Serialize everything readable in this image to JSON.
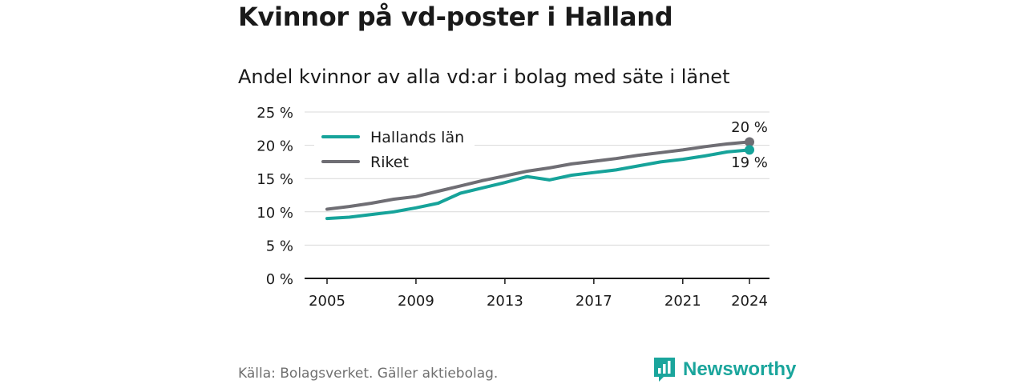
{
  "header": {
    "title": "Kvinnor på vd-poster i Halland",
    "subtitle": "Andel kvinnor av alla vd:ar i bolag med säte i länet"
  },
  "footer": {
    "source": "Källa: Bolagsverket. Gäller aktiebolag.",
    "brand": "Newsworthy",
    "brand_icon": "bar-chart-speech-bubble-icon",
    "brand_color": "#1aa59c"
  },
  "chart_data": {
    "type": "line",
    "title": "Kvinnor på vd-poster i Halland",
    "subtitle": "Andel kvinnor av alla vd:ar i bolag med säte i länet",
    "x": [
      2005,
      2006,
      2007,
      2008,
      2009,
      2010,
      2011,
      2012,
      2013,
      2014,
      2015,
      2016,
      2017,
      2018,
      2019,
      2020,
      2021,
      2022,
      2023,
      2024
    ],
    "x_ticks": [
      "2005",
      "2009",
      "2013",
      "2017",
      "2021",
      "2024"
    ],
    "y_ticks": [
      "0 %",
      "5 %",
      "10 %",
      "15 %",
      "20 %",
      "25 %"
    ],
    "ylim": [
      0,
      25
    ],
    "grid": true,
    "legend_position": "top-left",
    "series": [
      {
        "name": "Hallands län",
        "color": "#16a39a",
        "values": [
          9.0,
          9.2,
          9.6,
          10.0,
          10.6,
          11.3,
          12.8,
          13.6,
          14.4,
          15.3,
          14.8,
          15.5,
          15.9,
          16.3,
          16.9,
          17.5,
          17.9,
          18.4,
          19.0,
          19.3
        ],
        "end_label": "19 %"
      },
      {
        "name": "Riket",
        "color": "#6f6e74",
        "values": [
          10.4,
          10.8,
          11.3,
          11.9,
          12.3,
          13.1,
          13.9,
          14.7,
          15.4,
          16.1,
          16.6,
          17.2,
          17.6,
          18.0,
          18.5,
          18.9,
          19.3,
          19.8,
          20.2,
          20.5
        ],
        "end_label": "20 %"
      }
    ]
  }
}
